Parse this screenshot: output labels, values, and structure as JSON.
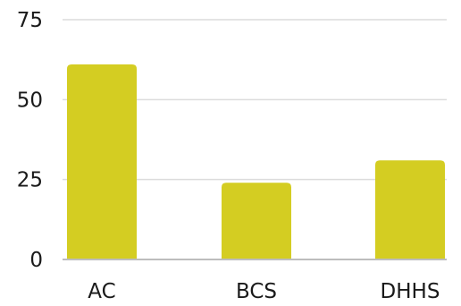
{
  "chart_data": {
    "type": "bar",
    "categories": [
      "AC",
      "BCS",
      "DHHS"
    ],
    "values": [
      61,
      24,
      31
    ],
    "ylim": [
      0,
      75
    ],
    "yticks": [
      "0",
      "25",
      "50",
      "75"
    ],
    "ytick_values": [
      0,
      25,
      50,
      75
    ],
    "grid": true,
    "legend": "none",
    "bar_color": "#d4cd22",
    "grid_color": "#dcdcdc",
    "axis_color": "#bdbdbd"
  }
}
